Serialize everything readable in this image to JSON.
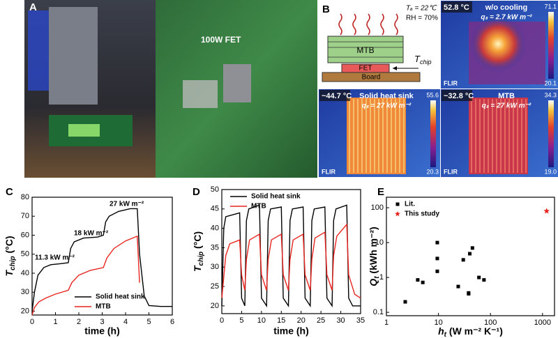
{
  "panels": {
    "A": {
      "label": "A",
      "annotation": "100W FET"
    },
    "B": {
      "label": "B",
      "schematic": {
        "ambient": "Tₐ = 22℃",
        "humidity": "RH = 70%",
        "mtb": "MTB",
        "fet": "FET",
        "board": "Board",
        "tchip": {
          "symbol": "T",
          "subscript": "chip"
        }
      },
      "thermal": [
        {
          "max_temp": "52.8 °C",
          "title": "w/o cooling",
          "flux": "qₛ = 2.7 kW m⁻²",
          "scale_top": "71.1",
          "scale_bottom": "20.1",
          "brand": "FLIR"
        },
        {
          "max_temp": "~44.7 °C",
          "title": "Solid heat sink",
          "flux": "qₛ = 27 kW m⁻²",
          "scale_top": "55.6",
          "scale_bottom": "20.3",
          "brand": "FLIR"
        },
        {
          "max_temp": "~32.8 °C",
          "title": "MTB",
          "flux": "qₛ = 27 kW m⁻²",
          "scale_top": "34.3",
          "scale_bottom": "19.0",
          "brand": "FLIR"
        }
      ]
    }
  },
  "chart_data": [
    {
      "type": "line",
      "panel": "C",
      "xlabel": "time (h)",
      "ylabel": {
        "symbol": "T",
        "subscript": "chip",
        "unit": " (°C)"
      },
      "xlim": [
        0,
        6
      ],
      "ylim": [
        18,
        80
      ],
      "xticks": [
        0,
        1,
        2,
        3,
        4,
        5,
        6
      ],
      "yticks": [
        20,
        30,
        40,
        50,
        60,
        70,
        80
      ],
      "legend": "lower right",
      "annotations": [
        "11.3 kW m⁻²",
        "18 kW m⁻²",
        "27 kW m⁻²"
      ],
      "series": [
        {
          "name": "Solid heat sink",
          "color": "#000000",
          "x": [
            0,
            0.1,
            0.25,
            0.5,
            0.8,
            1.2,
            1.55,
            1.65,
            1.8,
            2.2,
            2.8,
            3.05,
            3.15,
            3.3,
            3.7,
            4.2,
            4.5,
            4.6,
            4.8,
            5.0,
            5.5,
            6.0
          ],
          "values": [
            20,
            30,
            39,
            43,
            44.5,
            45,
            45.5,
            53,
            56.5,
            58.5,
            59,
            60,
            67,
            70,
            72.5,
            74,
            74,
            50,
            28,
            23,
            22.5,
            22.5
          ]
        },
        {
          "name": "MTB",
          "color": "#e8251f",
          "x": [
            0,
            0.1,
            0.3,
            0.6,
            1.0,
            1.55,
            1.7,
            2.0,
            2.5,
            3.05,
            3.2,
            3.5,
            4.0,
            4.5,
            4.6
          ],
          "values": [
            18,
            22,
            25,
            27,
            29,
            31,
            35,
            39,
            41.5,
            43,
            48,
            53,
            57,
            59.5,
            35
          ]
        }
      ]
    },
    {
      "type": "line",
      "panel": "D",
      "xlabel": "time (h)",
      "ylabel": {
        "symbol": "T",
        "subscript": "chip",
        "unit": " (°C)"
      },
      "xlim": [
        0,
        35
      ],
      "ylim": [
        18,
        50
      ],
      "xticks": [
        0,
        5,
        10,
        15,
        20,
        25,
        30,
        35
      ],
      "yticks": [
        20,
        25,
        30,
        35,
        40,
        45,
        50
      ],
      "legend": "upper left",
      "series": [
        {
          "name": "Solid heat sink",
          "color": "#000000",
          "x": [
            0,
            0.5,
            1,
            4.5,
            5,
            5.8,
            6.2,
            6.8,
            9.5,
            10,
            11.3,
            11.7,
            12.3,
            15,
            15.5,
            16.8,
            17.2,
            17.8,
            20.5,
            21,
            22.3,
            22.7,
            23.3,
            26,
            26.5,
            27.8,
            28.2,
            28.8,
            31.5,
            32,
            33,
            35
          ],
          "values": [
            20,
            40,
            43,
            44,
            22,
            20,
            42,
            45,
            46,
            22,
            20,
            42,
            45,
            45.5,
            22,
            20,
            42,
            45,
            45.5,
            22,
            20,
            42,
            45,
            45.5,
            22,
            20,
            42,
            45,
            46,
            22,
            20,
            20
          ]
        },
        {
          "name": "MTB",
          "color": "#e8251f",
          "x": [
            0,
            1,
            2,
            4.5,
            5,
            5.8,
            6.2,
            7,
            9.5,
            10,
            11.3,
            11.7,
            12.5,
            15,
            15.5,
            16.8,
            17.2,
            18,
            20.5,
            21,
            22.3,
            22.7,
            23.5,
            26,
            26.5,
            27.8,
            28.2,
            29,
            31.5,
            32,
            33.5,
            35
          ],
          "values": [
            22,
            33,
            36,
            37,
            28,
            24,
            32,
            37,
            38.5,
            28,
            24,
            32,
            37,
            38.5,
            28,
            24,
            32,
            37,
            38.5,
            28,
            24,
            32,
            37.5,
            39,
            28,
            24,
            33,
            38,
            41,
            28,
            23,
            22
          ]
        }
      ]
    },
    {
      "type": "scatter",
      "panel": "E",
      "log_scale": true,
      "xlabel": {
        "symbol": "h",
        "subscript": "t",
        "unit": " (W m⁻² K⁻¹)"
      },
      "ylabel": {
        "symbol": "Q",
        "subscript": "t",
        "unit": " (kWh m⁻²)"
      },
      "xlim": [
        1,
        1700
      ],
      "ylim": [
        0.08,
        200
      ],
      "xticks": [
        1,
        10,
        100,
        1000
      ],
      "yticks": [
        0.1,
        1,
        10,
        100
      ],
      "legend": "upper left",
      "series": [
        {
          "name": "Lit.",
          "color": "#000000",
          "marker": "square",
          "x": [
            2.3,
            4,
            5,
            9.5,
            9.5,
            9.5,
            24,
            30,
            38,
            38,
            40,
            45,
            60,
            75
          ],
          "values": [
            0.2,
            0.85,
            0.72,
            10,
            3.5,
            1.5,
            0.55,
            3.2,
            0.36,
            0.34,
            4.8,
            7,
            1,
            0.85
          ]
        },
        {
          "name": "This study",
          "color": "#e8251f",
          "marker": "star",
          "x": [
            1200
          ],
          "values": [
            80
          ]
        }
      ]
    }
  ]
}
